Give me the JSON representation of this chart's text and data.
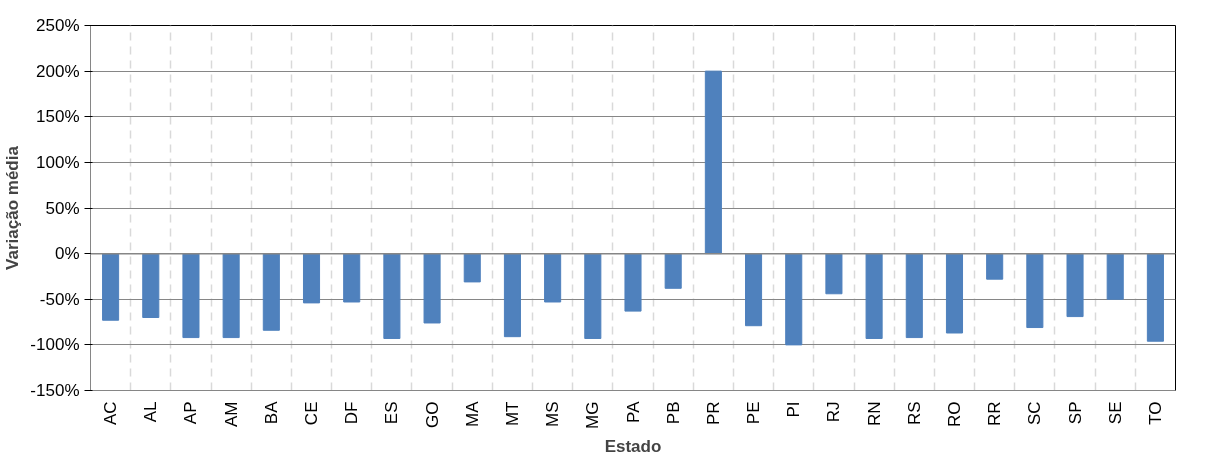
{
  "chart_data": {
    "type": "bar",
    "xlabel": "Estado",
    "ylabel": "Variação média",
    "categories": [
      "AC",
      "AL",
      "AP",
      "AM",
      "BA",
      "CE",
      "DF",
      "ES",
      "GO",
      "MA",
      "MT",
      "MS",
      "MG",
      "PA",
      "PB",
      "PR",
      "PE",
      "PI",
      "RJ",
      "RN",
      "RS",
      "RO",
      "RR",
      "SC",
      "SP",
      "SE",
      "TO"
    ],
    "values": [
      -73,
      -70,
      -92,
      -92,
      -84,
      -54,
      -53,
      -93,
      -76,
      -31,
      -91,
      -53,
      -93,
      -63,
      -38,
      200,
      -79,
      -100,
      -44,
      -93,
      -92,
      -87,
      -28,
      -81,
      -69,
      -50,
      -96
    ],
    "color": "#4f81bd",
    "ylim": [
      -150,
      250
    ],
    "yticks": [
      {
        "value": -150,
        "label": "-150%"
      },
      {
        "value": -100,
        "label": "-100%"
      },
      {
        "value": -50,
        "label": "-50%"
      },
      {
        "value": 0,
        "label": "0%"
      },
      {
        "value": 50,
        "label": "50%"
      },
      {
        "value": 100,
        "label": "100%"
      },
      {
        "value": 150,
        "label": "150%"
      },
      {
        "value": 200,
        "label": "200%"
      },
      {
        "value": 250,
        "label": "250%"
      }
    ],
    "grid": true
  }
}
